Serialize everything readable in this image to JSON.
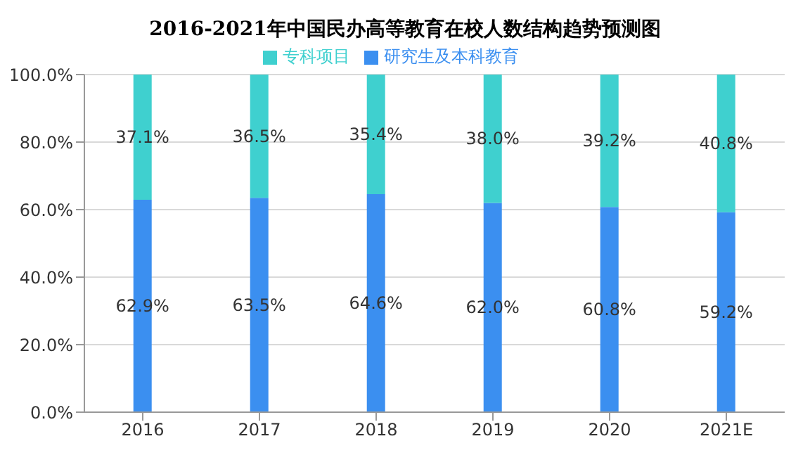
{
  "chart_data": {
    "type": "bar",
    "title": "2016-2021年中国民办高等教育在校人数结构趋势预测图",
    "categories": [
      "2016",
      "2017",
      "2018",
      "2019",
      "2020",
      "2021E"
    ],
    "stacked": true,
    "series": [
      {
        "name": "研究生及本科教育",
        "color": "#3b8ff0",
        "values": [
          62.9,
          63.5,
          64.6,
          62.0,
          60.8,
          59.2
        ],
        "value_labels": [
          "62.9%",
          "63.5%",
          "64.6%",
          "62.0%",
          "60.8%",
          "59.2%"
        ]
      },
      {
        "name": "专科项目",
        "color": "#3fd0cf",
        "values": [
          37.1,
          36.5,
          35.4,
          38.0,
          39.2,
          40.8
        ],
        "value_labels": [
          "37.1%",
          "36.5%",
          "35.4%",
          "38.0%",
          "39.2%",
          "40.8%"
        ]
      }
    ],
    "ylim": [
      0,
      100
    ],
    "yticks": [
      {
        "value": 0,
        "label": "0.0%"
      },
      {
        "value": 20,
        "label": "20.0%"
      },
      {
        "value": 40,
        "label": "40.0%"
      },
      {
        "value": 60,
        "label": "60.0%"
      },
      {
        "value": 80,
        "label": "80.0%"
      },
      {
        "value": 100,
        "label": "100.0%"
      }
    ],
    "grid": "y",
    "legend": "top"
  }
}
